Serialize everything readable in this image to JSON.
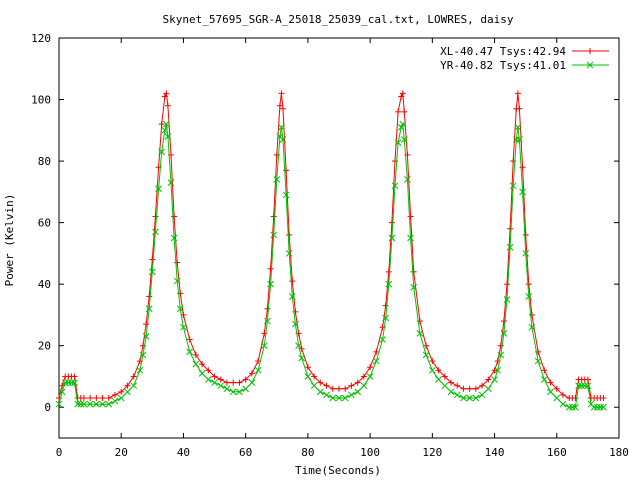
{
  "chart_data": {
    "type": "line",
    "title": "Skynet_57695_SGR-A_25018_25039_cal.txt, LOWRES, daisy",
    "xlabel": "Time(Seconds)",
    "ylabel": "Power (Kelvin)",
    "xlim": [
      0,
      180
    ],
    "ylim": [
      -10,
      120
    ],
    "xticks": [
      0,
      20,
      40,
      60,
      80,
      100,
      120,
      140,
      160,
      180
    ],
    "yticks": [
      0,
      20,
      40,
      60,
      80,
      100,
      120
    ],
    "grid": false,
    "legend_position": "top-right",
    "series": [
      {
        "name": "XL-40.47 Tsys:42.94",
        "color": "#ff0000",
        "marker": "plus",
        "x": [
          0,
          1,
          2,
          3,
          4,
          5,
          6,
          7,
          8,
          10,
          12,
          14,
          16,
          18,
          20,
          22,
          24,
          26,
          27,
          28,
          29,
          30,
          31,
          32,
          33,
          34,
          34.5,
          35,
          36,
          37,
          38,
          39,
          40,
          42,
          44,
          46,
          48,
          50,
          52,
          54,
          56,
          58,
          60,
          62,
          64,
          66,
          67,
          68,
          69,
          70,
          71,
          71.5,
          72,
          73,
          74,
          75,
          76,
          77,
          78,
          80,
          82,
          84,
          86,
          88,
          90,
          92,
          94,
          96,
          98,
          100,
          102,
          104,
          105,
          106,
          107,
          108,
          109,
          110,
          110.5,
          111,
          112,
          113,
          114,
          116,
          118,
          120,
          122,
          124,
          126,
          128,
          130,
          132,
          134,
          136,
          138,
          140,
          141,
          142,
          143,
          144,
          145,
          146,
          147,
          147.5,
          148,
          149,
          150,
          151,
          152,
          154,
          156,
          158,
          160,
          162,
          164,
          165,
          166,
          167,
          168,
          169,
          170,
          171,
          172,
          173,
          174,
          175
        ],
        "y": [
          3,
          7,
          10,
          10,
          10,
          10,
          3,
          3,
          3,
          3,
          3,
          3,
          3,
          4,
          5,
          7,
          10,
          15,
          20,
          27,
          36,
          48,
          62,
          78,
          92,
          101,
          102,
          98,
          82,
          62,
          47,
          37,
          30,
          22,
          17,
          14,
          12,
          10,
          9,
          8,
          8,
          8,
          9,
          11,
          15,
          24,
          32,
          45,
          62,
          82,
          98,
          102,
          97,
          77,
          56,
          41,
          31,
          24,
          19,
          13,
          10,
          8,
          7,
          6,
          6,
          6,
          7,
          8,
          10,
          13,
          18,
          26,
          33,
          44,
          60,
          80,
          96,
          101,
          102,
          96,
          82,
          62,
          44,
          28,
          20,
          15,
          12,
          10,
          8,
          7,
          6,
          6,
          6,
          7,
          9,
          12,
          15,
          20,
          28,
          40,
          58,
          80,
          97,
          102,
          97,
          78,
          56,
          40,
          30,
          18,
          12,
          8,
          6,
          4,
          3,
          3,
          3,
          9,
          9,
          9,
          9,
          3,
          3,
          3,
          3,
          3
        ]
      },
      {
        "name": "YR-40.82 Tsys:41.01",
        "color": "#00c000",
        "marker": "cross",
        "x": [
          0,
          1,
          2,
          3,
          4,
          5,
          6,
          7,
          8,
          10,
          12,
          14,
          16,
          18,
          20,
          22,
          24,
          26,
          27,
          28,
          29,
          30,
          31,
          32,
          33,
          34,
          34.5,
          35,
          36,
          37,
          38,
          39,
          40,
          42,
          44,
          46,
          48,
          50,
          52,
          54,
          56,
          58,
          60,
          62,
          64,
          66,
          67,
          68,
          69,
          70,
          71,
          71.5,
          72,
          73,
          74,
          75,
          76,
          77,
          78,
          80,
          82,
          84,
          86,
          88,
          90,
          92,
          94,
          96,
          98,
          100,
          102,
          104,
          105,
          106,
          107,
          108,
          109,
          110,
          110.5,
          111,
          112,
          113,
          114,
          116,
          118,
          120,
          122,
          124,
          126,
          128,
          130,
          132,
          134,
          136,
          138,
          140,
          141,
          142,
          143,
          144,
          145,
          146,
          147,
          147.5,
          148,
          149,
          150,
          151,
          152,
          154,
          156,
          158,
          160,
          162,
          164,
          165,
          166,
          167,
          168,
          169,
          170,
          171,
          172,
          173,
          174,
          175
        ],
        "y": [
          1,
          5,
          8,
          8,
          8,
          8,
          1,
          1,
          1,
          1,
          1,
          1,
          1,
          2,
          3,
          5,
          7,
          12,
          17,
          23,
          32,
          44,
          57,
          71,
          83,
          90,
          92,
          88,
          73,
          55,
          41,
          32,
          26,
          18,
          14,
          11,
          9,
          8,
          7,
          6,
          5,
          5,
          6,
          8,
          12,
          20,
          28,
          40,
          56,
          74,
          88,
          91,
          87,
          69,
          50,
          36,
          27,
          20,
          16,
          10,
          7,
          5,
          4,
          3,
          3,
          3,
          4,
          5,
          7,
          10,
          15,
          22,
          29,
          40,
          55,
          72,
          86,
          91,
          92,
          87,
          74,
          55,
          39,
          24,
          17,
          12,
          9,
          7,
          5,
          4,
          3,
          3,
          3,
          4,
          6,
          9,
          12,
          17,
          24,
          35,
          52,
          72,
          87,
          91,
          87,
          70,
          50,
          36,
          26,
          15,
          9,
          5,
          3,
          1,
          0,
          0,
          0,
          7,
          7,
          7,
          7,
          1,
          0,
          0,
          0,
          0
        ]
      }
    ]
  }
}
